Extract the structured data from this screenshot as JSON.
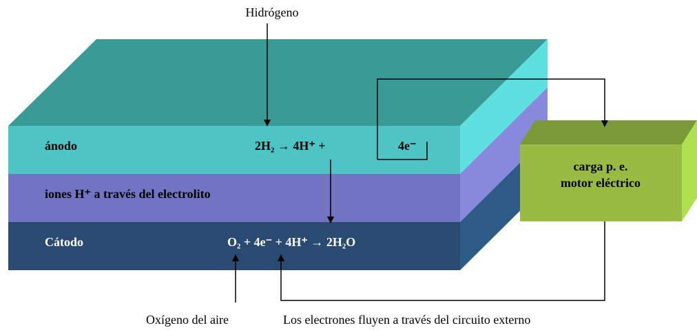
{
  "labels": {
    "hydrogen": "Hidrógeno",
    "oxygen": "Oxígeno del aire",
    "electrons": "Los electrones fluyen a través del circuito externo"
  },
  "layers": {
    "anode": "ánodo",
    "electrolyte": "iones H⁺ a través del electrolito",
    "cathode": "Cátodo"
  },
  "equations": {
    "anode": "2H₂ → 4H⁺ +",
    "anode_electrons": "4e⁻",
    "cathode": "O₂ + 4e⁻ + 4H⁺ → 2H₂O"
  },
  "load": {
    "line1": "carga p. e.",
    "line2": "motor eléctrico"
  }
}
